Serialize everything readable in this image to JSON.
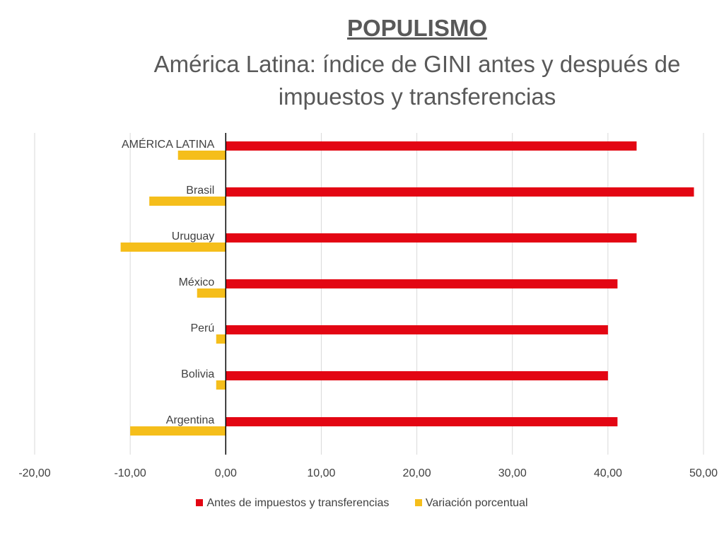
{
  "chart_data": {
    "type": "bar",
    "orientation": "horizontal",
    "title": "POPULISMO",
    "subtitle": "América Latina: índice de GINI antes y después de impuestos y transferencias",
    "xlabel": "",
    "ylabel": "",
    "categories": [
      "AMÉRICA LATINA",
      "Brasil",
      "Uruguay",
      "México",
      "Perú",
      "Bolivia",
      "Argentina"
    ],
    "series": [
      {
        "name": "Antes de impuestos y transferencias",
        "color": "#e30613",
        "values": [
          43.0,
          49.0,
          43.0,
          41.0,
          40.0,
          40.0,
          41.0
        ]
      },
      {
        "name": "Variación porcentual",
        "color": "#f5be1b",
        "values": [
          -5.0,
          -8.0,
          -11.0,
          -3.0,
          -1.0,
          -1.0,
          -10.0
        ]
      }
    ],
    "xlim": [
      -20,
      50
    ],
    "xticks": [
      -20,
      -10,
      0,
      10,
      20,
      30,
      40,
      50
    ],
    "xtick_labels": [
      "-20,00",
      "-10,00",
      "0,00",
      "10,00",
      "20,00",
      "30,00",
      "40,00",
      "50,00"
    ],
    "grid": "vertical",
    "legend": "bottom"
  }
}
